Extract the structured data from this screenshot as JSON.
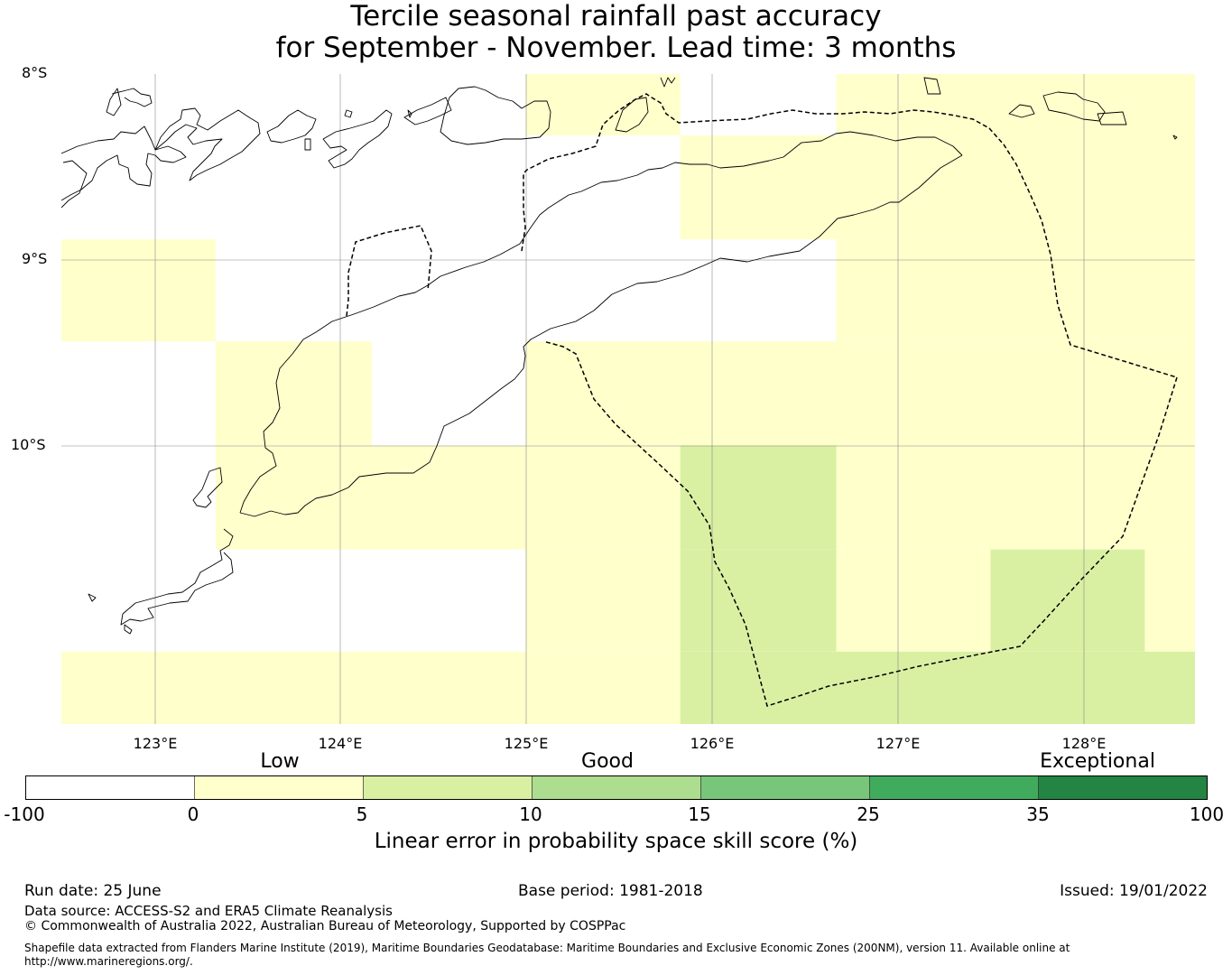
{
  "title": {
    "line1": "Tercile seasonal rainfall past accuracy",
    "line2": "for September - November. Lead time: 3 months"
  },
  "map": {
    "lat_labels": [
      "8°S",
      "9°S",
      "10°S"
    ],
    "lon_labels": [
      "123°E",
      "124°E",
      "125°E",
      "126°E",
      "127°E",
      "128°E"
    ],
    "extent": {
      "lon_min": 122.5,
      "lon_max": 128.6,
      "lat_min": -11.5,
      "lat_max": -8.0
    },
    "grid_lines": true,
    "land_outline_color": "#000000",
    "boundary_style": "dashed",
    "skill_cells": [
      {
        "lon": [
          125.0,
          125.83
        ],
        "lat": [
          -8.33,
          -8.0
        ],
        "category": "0 to 5"
      },
      {
        "lon": [
          126.67,
          128.6
        ],
        "lat": [
          -8.33,
          -8.0
        ],
        "category": "0 to 5"
      },
      {
        "lon": [
          125.83,
          128.6
        ],
        "lat": [
          -8.89,
          -8.33
        ],
        "category": "0 to 5"
      },
      {
        "lon": [
          122.5,
          123.33
        ],
        "lat": [
          -9.44,
          -8.89
        ],
        "category": "0 to 5"
      },
      {
        "lon": [
          126.67,
          128.6
        ],
        "lat": [
          -9.44,
          -8.89
        ],
        "category": "0 to 5"
      },
      {
        "lon": [
          123.33,
          124.17
        ],
        "lat": [
          -10.0,
          -9.44
        ],
        "category": "0 to 5"
      },
      {
        "lon": [
          125.0,
          128.6
        ],
        "lat": [
          -10.0,
          -9.44
        ],
        "category": "0 to 5"
      },
      {
        "lon": [
          123.33,
          125.83
        ],
        "lat": [
          -10.56,
          -10.0
        ],
        "category": "0 to 5"
      },
      {
        "lon": [
          125.83,
          126.67
        ],
        "lat": [
          -10.56,
          -10.0
        ],
        "category": "5 to 10"
      },
      {
        "lon": [
          126.67,
          128.6
        ],
        "lat": [
          -10.56,
          -10.0
        ],
        "category": "0 to 5"
      },
      {
        "lon": [
          125.0,
          125.83
        ],
        "lat": [
          -11.11,
          -10.56
        ],
        "category": "0 to 5"
      },
      {
        "lon": [
          125.83,
          126.67
        ],
        "lat": [
          -11.11,
          -10.56
        ],
        "category": "5 to 10"
      },
      {
        "lon": [
          126.67,
          127.5
        ],
        "lat": [
          -11.11,
          -10.56
        ],
        "category": "0 to 5"
      },
      {
        "lon": [
          127.5,
          128.33
        ],
        "lat": [
          -11.11,
          -10.56
        ],
        "category": "5 to 10"
      },
      {
        "lon": [
          128.33,
          128.6
        ],
        "lat": [
          -11.11,
          -10.56
        ],
        "category": "0 to 5"
      },
      {
        "lon": [
          122.5,
          125.83
        ],
        "lat": [
          -11.5,
          -11.11
        ],
        "category": "0 to 5"
      },
      {
        "lon": [
          125.83,
          128.6
        ],
        "lat": [
          -11.5,
          -11.11
        ],
        "category": "5 to 10"
      }
    ]
  },
  "colorbar": {
    "categories": [
      "Low",
      "Good",
      "Exceptional"
    ],
    "ticks": [
      "-100",
      "0",
      "5",
      "10",
      "15",
      "25",
      "35",
      "100"
    ],
    "colors": [
      "#ffffff",
      "#ffffcc",
      "#d9f0a3",
      "#addd8e",
      "#78c679",
      "#41ab5d",
      "#238443"
    ],
    "label": "Linear error in probability space skill score (%)"
  },
  "footer": {
    "run_date": "Run date: 25 June",
    "base_period": "Base period: 1981-2018",
    "issued": "Issued: 19/01/2022",
    "data_source": "Data source: ACCESS-S2 and ERA5 Climate Reanalysis",
    "copyright": "© Commonwealth of Australia 2022, Australian Bureau of Meteorology, Supported by COSPPac",
    "shapefile_line1": "Shapefile data extracted from Flanders Marine Institute (2019), Maritime Boundaries Geodatabase: Maritime Boundaries and Exclusive Economic Zones (200NM), version 11. Available online at",
    "shapefile_line2": "http://www.marineregions.org/."
  }
}
